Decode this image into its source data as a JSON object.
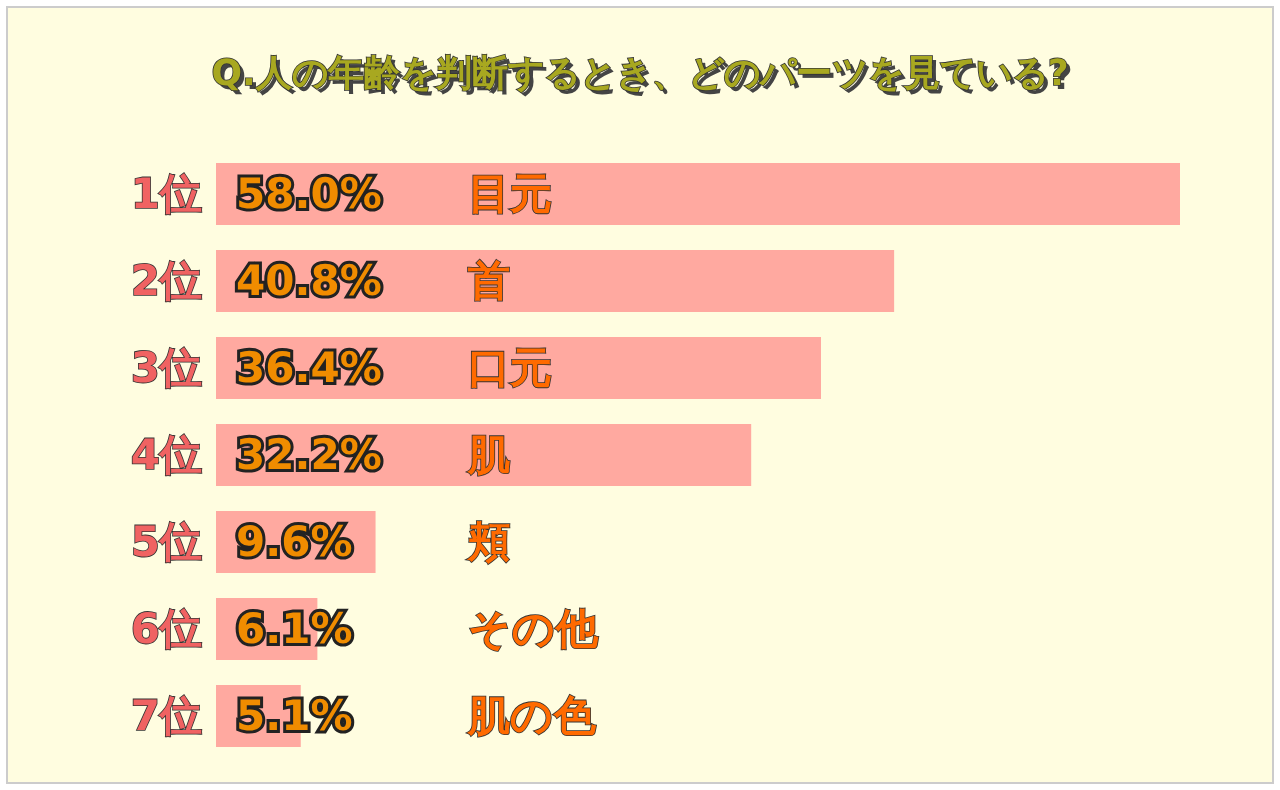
{
  "chart_data": {
    "type": "bar",
    "orientation": "horizontal",
    "title": "Q.人の年齢を判断するとき、どのパーツを見ている?",
    "categories": [
      "目元",
      "首",
      "口元",
      "肌",
      "頬",
      "その他",
      "肌の色"
    ],
    "values": [
      58.0,
      40.8,
      36.4,
      32.2,
      9.6,
      6.1,
      5.1
    ],
    "value_labels": [
      "58.0%",
      "40.8%",
      "36.4%",
      "32.2%",
      "9.6%",
      "6.1%",
      "5.1%"
    ],
    "color": "#ffa9a0",
    "annotations": [
      "1位",
      "2位",
      "3位",
      "4位",
      "5位",
      "6位",
      "7位"
    ]
  }
}
